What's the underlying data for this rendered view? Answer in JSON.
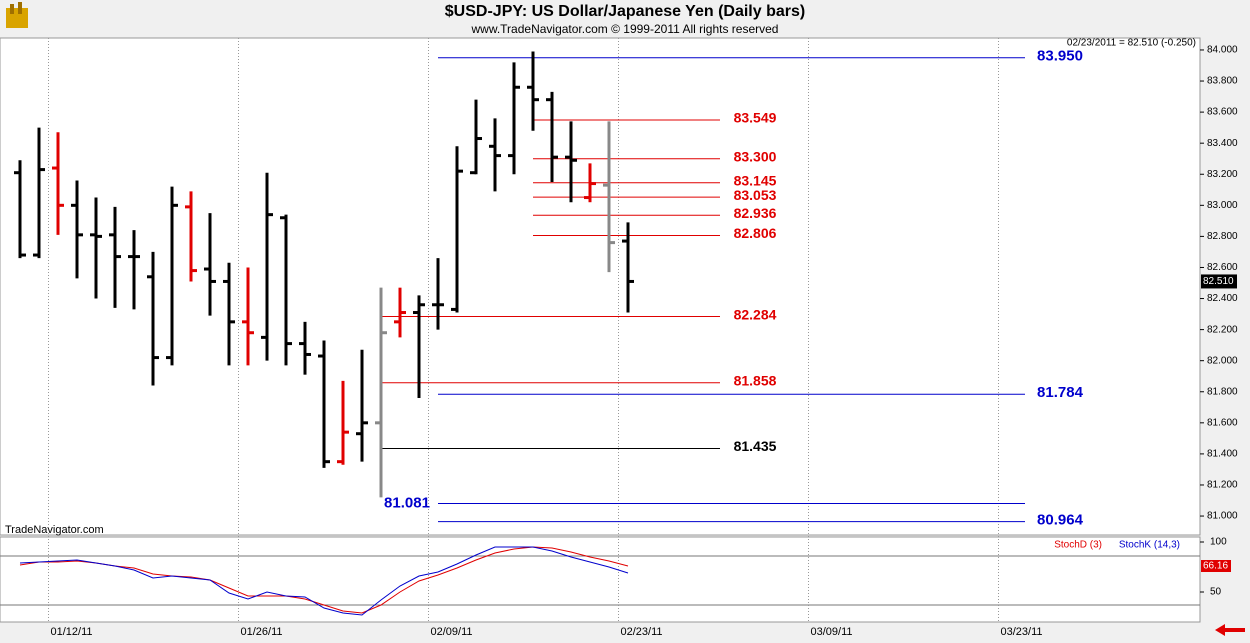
{
  "chart_data": {
    "type": "ohlc",
    "title": "$USD-JPY:  US Dollar/Japanese Yen  (Daily bars)",
    "subtitle": "www.TradeNavigator.com © 1999-2011 All rights reserved",
    "header": "02/23/2011 = 82.510 (-0.250)",
    "watermark": "TradeNavigator.com",
    "ylim": [
      80.878,
      84.077
    ],
    "yticks": [
      {
        "value": 81,
        "label": "81.000"
      },
      {
        "value": 81.2,
        "label": "81.200"
      },
      {
        "value": 81.4,
        "label": "81.400"
      },
      {
        "value": 81.6,
        "label": "81.600"
      },
      {
        "value": 81.8,
        "label": "81.800"
      },
      {
        "value": 82,
        "label": "82.000"
      },
      {
        "value": 82.2,
        "label": "82.200"
      },
      {
        "value": 82.4,
        "label": "82.400"
      },
      {
        "value": 82.6,
        "label": "82.600"
      },
      {
        "value": 82.8,
        "label": "82.800"
      },
      {
        "value": 83,
        "label": "83.000"
      },
      {
        "value": 83.2,
        "label": "83.200"
      },
      {
        "value": 83.4,
        "label": "83.400"
      },
      {
        "value": 83.6,
        "label": "83.600"
      },
      {
        "value": 83.8,
        "label": "83.800"
      },
      {
        "value": 84,
        "label": "84.000"
      }
    ],
    "xticks": [
      {
        "value": 1.5,
        "label": "01/12/11"
      },
      {
        "value": 11.5,
        "label": "01/26/11"
      },
      {
        "value": 21.5,
        "label": "02/09/11"
      },
      {
        "value": 31.5,
        "label": "02/23/11"
      },
      {
        "value": 41.5,
        "label": "03/09/11"
      },
      {
        "value": 51.5,
        "label": "03/23/11"
      }
    ],
    "open": [
      83.21,
      82.68,
      83.24,
      83.0,
      82.81,
      82.81,
      82.67,
      82.54,
      82.02,
      82.99,
      82.59,
      82.51,
      82.25,
      82.15,
      82.92,
      82.11,
      82.03,
      81.35,
      81.53,
      81.6,
      82.25,
      82.31,
      82.36,
      82.33,
      83.21,
      83.38,
      83.32,
      83.76,
      83.68,
      83.31,
      83.05,
      83.13,
      82.77
    ],
    "high": [
      83.29,
      83.5,
      83.47,
      83.16,
      83.05,
      82.99,
      82.84,
      82.7,
      83.12,
      83.09,
      82.95,
      82.63,
      82.6,
      83.21,
      82.94,
      82.25,
      82.13,
      81.87,
      82.07,
      82.47,
      82.47,
      82.42,
      82.66,
      83.38,
      83.68,
      83.56,
      83.92,
      83.99,
      83.73,
      83.54,
      83.27,
      83.54,
      82.89
    ],
    "low": [
      82.66,
      82.66,
      82.81,
      82.53,
      82.4,
      82.34,
      82.33,
      81.84,
      81.97,
      82.51,
      82.29,
      81.97,
      81.97,
      82.0,
      81.97,
      81.91,
      81.31,
      81.33,
      81.35,
      81.12,
      82.15,
      81.76,
      82.2,
      82.31,
      83.2,
      83.09,
      83.2,
      83.48,
      83.15,
      83.02,
      83.02,
      82.57,
      82.31
    ],
    "close": [
      82.68,
      83.23,
      83.0,
      82.81,
      82.8,
      82.67,
      82.67,
      82.02,
      83.0,
      82.58,
      82.51,
      82.25,
      82.18,
      82.94,
      82.11,
      82.04,
      81.35,
      81.54,
      81.6,
      82.18,
      82.31,
      82.36,
      82.36,
      83.22,
      83.43,
      83.32,
      83.76,
      83.68,
      83.31,
      83.29,
      83.14,
      82.76,
      82.51
    ],
    "bar_colors": [
      "#000",
      "#000",
      "#e00000",
      "#000",
      "#000",
      "#000",
      "#000",
      "#000",
      "#000",
      "#e00000",
      "#000",
      "#000",
      "#e00000",
      "#000",
      "#000",
      "#000",
      "#000",
      "#e00000",
      "#000",
      "#888",
      "#e00000",
      "#000",
      "#000",
      "#000",
      "#000",
      "#000",
      "#000",
      "#000",
      "#000",
      "#000",
      "#e00000",
      "#888",
      "#000"
    ],
    "last": {
      "value": 82.51,
      "label": "82.510"
    },
    "levels": [
      {
        "value": 83.95,
        "label": "83.950",
        "color": "#0000cc"
      },
      {
        "value": 83.549,
        "label": "83.549",
        "color": "#e00000"
      },
      {
        "value": 83.3,
        "label": "83.300",
        "color": "#e00000"
      },
      {
        "value": 83.145,
        "label": "83.145",
        "color": "#e00000"
      },
      {
        "value": 83.053,
        "label": "83.053",
        "color": "#e00000"
      },
      {
        "value": 82.936,
        "label": "82.936",
        "color": "#e00000"
      },
      {
        "value": 82.806,
        "label": "82.806",
        "color": "#e00000"
      },
      {
        "value": 82.284,
        "label": "82.284",
        "color": "#e00000"
      },
      {
        "value": 81.858,
        "label": "81.858",
        "color": "#e00000"
      },
      {
        "value": 81.784,
        "label": "81.784",
        "color": "#0000cc"
      },
      {
        "value": 81.435,
        "label": "81.435",
        "color": "#000000"
      },
      {
        "value": 81.081,
        "label": "81.081",
        "color": "#0000cc"
      },
      {
        "value": 80.964,
        "label": "80.964",
        "color": "#0000cc"
      }
    ],
    "stoch": {
      "y2lim": [
        0,
        100
      ],
      "y2ticks": [
        100,
        50
      ],
      "readout": "66.16",
      "series": [
        {
          "name": "StochD (3)",
          "color": "#e00000",
          "values": [
            77,
            80,
            80,
            81,
            79,
            76,
            74,
            68,
            66,
            65,
            62,
            54,
            46,
            46,
            46,
            43,
            37,
            31,
            29,
            37,
            50,
            61,
            67,
            74,
            82,
            89,
            93,
            95,
            94,
            90,
            85,
            81,
            76
          ]
        },
        {
          "name": "StochK (14,3)",
          "color": "#0000cc",
          "values": [
            79,
            80,
            81,
            82,
            79,
            76,
            72,
            64,
            66,
            64,
            62,
            49,
            43,
            50,
            46,
            45,
            34,
            29,
            27,
            42,
            56,
            66,
            70,
            78,
            87,
            95,
            95,
            95,
            91,
            85,
            80,
            75,
            69
          ]
        }
      ]
    }
  }
}
